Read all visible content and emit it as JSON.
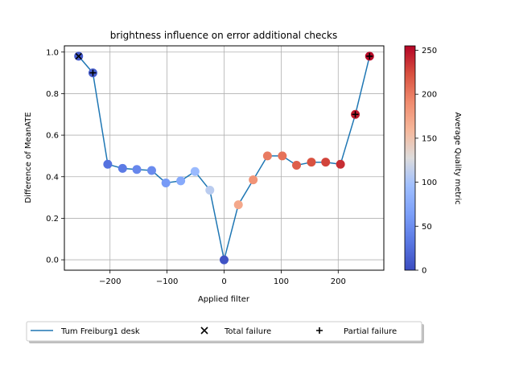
{
  "chart_data": {
    "type": "scatter",
    "title": "brightness influence on error additional checks",
    "xlabel": "Applied filter",
    "ylabel": "Difference of MeanATE",
    "xlim": [
      -280,
      280
    ],
    "ylim": [
      -0.05,
      1.03
    ],
    "x_ticks": [
      -200,
      -100,
      0,
      100,
      200
    ],
    "x_tick_labels": [
      "−200",
      "−100",
      "0",
      "100",
      "200"
    ],
    "y_ticks": [
      0.0,
      0.2,
      0.4,
      0.6,
      0.8,
      1.0
    ],
    "y_tick_labels": [
      "0.0",
      "0.2",
      "0.4",
      "0.6",
      "0.8",
      "1.0"
    ],
    "grid": true,
    "colormap": "coolwarm",
    "colorbar": {
      "label": "Average Quality metric",
      "range": [
        0,
        255
      ],
      "ticks": [
        0,
        50,
        100,
        150,
        200,
        250
      ],
      "tick_labels": [
        "0",
        "50",
        "100",
        "150",
        "200",
        "250"
      ]
    },
    "series": [
      {
        "name": "Tum Freiburg1 desk",
        "type": "line",
        "color": "#1f77b4",
        "x": [
          -255,
          -230,
          -204,
          -178,
          -153,
          -127,
          -102,
          -76,
          -51,
          -25,
          0,
          25,
          51,
          76,
          102,
          127,
          153,
          178,
          204,
          230,
          255
        ],
        "y": [
          0.98,
          0.9,
          0.46,
          0.44,
          0.435,
          0.43,
          0.37,
          0.38,
          0.425,
          0.335,
          0.0,
          0.265,
          0.385,
          0.5,
          0.5,
          0.455,
          0.47,
          0.47,
          0.46,
          0.7,
          0.98
        ],
        "quality": [
          10,
          15,
          28,
          35,
          45,
          48,
          60,
          75,
          92,
          110,
          5,
          170,
          185,
          200,
          205,
          215,
          222,
          228,
          238,
          245,
          252
        ]
      }
    ],
    "markers": [
      {
        "name": "Total failure",
        "symbol": "x",
        "x": [
          -255
        ],
        "y": [
          0.98
        ]
      },
      {
        "name": "Partial failure",
        "symbol": "+",
        "x": [
          -230,
          230,
          255
        ],
        "y": [
          0.9,
          0.7,
          0.98
        ]
      }
    ],
    "legend": {
      "placement": "bottom",
      "entries": [
        "Tum Freiburg1 desk",
        "Total failure",
        "Partial failure"
      ]
    }
  }
}
